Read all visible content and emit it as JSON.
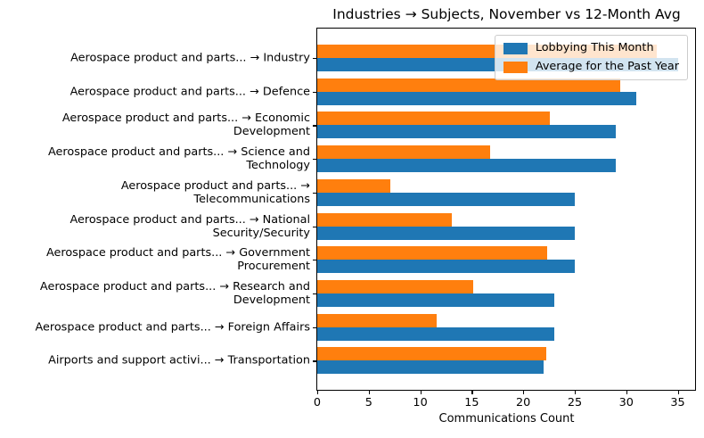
{
  "figure": {
    "background": "#ffffff"
  },
  "chart_data": {
    "type": "bar",
    "orientation": "horizontal",
    "title": "Industries → Subjects, November vs 12-Month Avg",
    "xlabel": "Communications Count",
    "ylabel": "",
    "categories": [
      "Aerospace product and parts... → Industry",
      "Aerospace product and parts... → Defence",
      "Aerospace product and parts... → Economic\nDevelopment",
      "Aerospace product and parts... → Science and\nTechnology",
      "Aerospace product and parts... →\nTelecommunications",
      "Aerospace product and parts... → National\nSecurity/Security",
      "Aerospace product and parts... → Government\nProcurement",
      "Aerospace product and parts... → Research and\nDevelopment",
      "Aerospace product and parts... → Foreign Affairs",
      "Airports and support activi... → Transportation"
    ],
    "series": [
      {
        "name": "Lobbying This Month",
        "color": "#1f77b4",
        "values": [
          35,
          31,
          29,
          29,
          25,
          25,
          25,
          23,
          23,
          22
        ]
      },
      {
        "name": "Average for the Past Year",
        "color": "#ff7f0e",
        "values": [
          33.0,
          29.4,
          22.6,
          16.8,
          7.1,
          13.1,
          22.3,
          15.1,
          11.6,
          22.2
        ]
      }
    ],
    "xlim": [
      0,
      36.75
    ],
    "xticks": [
      0,
      5,
      10,
      15,
      20,
      25,
      30,
      35
    ],
    "legend_position": "upper right",
    "grid": false
  }
}
